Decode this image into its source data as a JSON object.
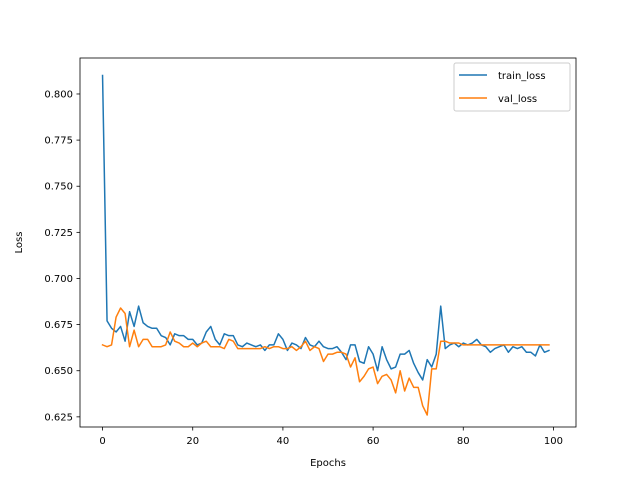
{
  "chart_data": {
    "type": "line",
    "title": "",
    "xlabel": "Epochs",
    "ylabel": "Loss",
    "xlim": [
      -5,
      105
    ],
    "ylim": [
      0.6195,
      0.8195
    ],
    "xticks": [
      0,
      20,
      40,
      60,
      80,
      100
    ],
    "xtick_labels": [
      "0",
      "20",
      "40",
      "60",
      "80",
      "100"
    ],
    "yticks": [
      0.625,
      0.65,
      0.675,
      0.7,
      0.725,
      0.75,
      0.775,
      0.8
    ],
    "ytick_labels": [
      "0.625",
      "0.650",
      "0.675",
      "0.700",
      "0.725",
      "0.750",
      "0.775",
      "0.800"
    ],
    "grid": false,
    "legend_position": "upper right",
    "x": [
      0,
      1,
      2,
      3,
      4,
      5,
      6,
      7,
      8,
      9,
      10,
      11,
      12,
      13,
      14,
      15,
      16,
      17,
      18,
      19,
      20,
      21,
      22,
      23,
      24,
      25,
      26,
      27,
      28,
      29,
      30,
      31,
      32,
      33,
      34,
      35,
      36,
      37,
      38,
      39,
      40,
      41,
      42,
      43,
      44,
      45,
      46,
      47,
      48,
      49,
      50,
      51,
      52,
      53,
      54,
      55,
      56,
      57,
      58,
      59,
      60,
      61,
      62,
      63,
      64,
      65,
      66,
      67,
      68,
      69,
      70,
      71,
      72,
      73,
      74,
      75,
      76,
      77,
      78,
      79,
      80,
      81,
      82,
      83,
      84,
      85,
      86,
      87,
      88,
      89,
      90,
      91,
      92,
      93,
      94,
      95,
      96,
      97,
      98,
      99
    ],
    "series": [
      {
        "name": "train_loss",
        "color": "#1f77b4",
        "values": [
          0.81,
          0.677,
          0.673,
          0.671,
          0.674,
          0.666,
          0.682,
          0.674,
          0.685,
          0.676,
          0.674,
          0.673,
          0.673,
          0.669,
          0.668,
          0.664,
          0.67,
          0.669,
          0.669,
          0.667,
          0.667,
          0.664,
          0.665,
          0.671,
          0.674,
          0.667,
          0.664,
          0.67,
          0.669,
          0.669,
          0.664,
          0.663,
          0.665,
          0.664,
          0.663,
          0.664,
          0.661,
          0.664,
          0.664,
          0.67,
          0.667,
          0.661,
          0.665,
          0.664,
          0.662,
          0.668,
          0.664,
          0.663,
          0.666,
          0.663,
          0.662,
          0.662,
          0.663,
          0.66,
          0.656,
          0.664,
          0.664,
          0.655,
          0.654,
          0.663,
          0.659,
          0.65,
          0.663,
          0.656,
          0.651,
          0.652,
          0.659,
          0.659,
          0.661,
          0.654,
          0.649,
          0.645,
          0.656,
          0.652,
          0.659,
          0.685,
          0.662,
          0.664,
          0.665,
          0.663,
          0.665,
          0.664,
          0.665,
          0.667,
          0.664,
          0.663,
          0.66,
          0.662,
          0.663,
          0.664,
          0.66,
          0.663,
          0.662,
          0.663,
          0.66,
          0.66,
          0.658,
          0.664,
          0.66,
          0.661
        ]
      },
      {
        "name": "val_loss",
        "color": "#ff7f0e",
        "values": [
          0.664,
          0.663,
          0.664,
          0.679,
          0.684,
          0.681,
          0.663,
          0.672,
          0.663,
          0.667,
          0.667,
          0.663,
          0.663,
          0.663,
          0.664,
          0.671,
          0.666,
          0.665,
          0.663,
          0.663,
          0.665,
          0.663,
          0.665,
          0.666,
          0.663,
          0.663,
          0.663,
          0.662,
          0.667,
          0.666,
          0.662,
          0.662,
          0.662,
          0.662,
          0.662,
          0.662,
          0.663,
          0.662,
          0.663,
          0.663,
          0.662,
          0.662,
          0.663,
          0.661,
          0.663,
          0.666,
          0.661,
          0.663,
          0.662,
          0.655,
          0.659,
          0.659,
          0.66,
          0.66,
          0.659,
          0.652,
          0.657,
          0.644,
          0.647,
          0.651,
          0.652,
          0.643,
          0.647,
          0.648,
          0.645,
          0.638,
          0.65,
          0.639,
          0.646,
          0.641,
          0.641,
          0.631,
          0.626,
          0.651,
          0.651,
          0.666,
          0.666,
          0.665,
          0.665,
          0.665,
          0.664,
          0.664,
          0.664,
          0.664,
          0.664,
          0.664,
          0.664,
          0.664,
          0.664,
          0.664,
          0.664,
          0.664,
          0.664,
          0.664,
          0.664,
          0.664,
          0.664,
          0.664,
          0.664,
          0.664
        ]
      }
    ]
  }
}
